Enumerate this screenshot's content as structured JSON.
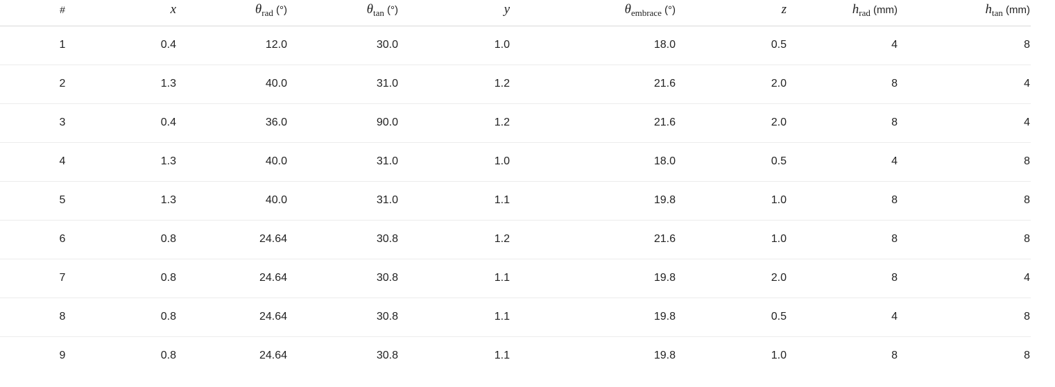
{
  "table": {
    "columns": [
      {
        "key": "index",
        "label": "#",
        "kind": "plain"
      },
      {
        "key": "x",
        "symbol": "x",
        "sub": "",
        "unit": "",
        "kind": "math"
      },
      {
        "key": "theta_rad",
        "symbol": "θ",
        "sub": "rad",
        "unit": " (°)",
        "kind": "math"
      },
      {
        "key": "theta_tan",
        "symbol": "θ",
        "sub": "tan",
        "unit": " (°)",
        "kind": "math"
      },
      {
        "key": "y",
        "symbol": "y",
        "sub": "",
        "unit": "",
        "kind": "math"
      },
      {
        "key": "theta_embrace",
        "symbol": "θ",
        "sub": "embrace",
        "unit": " (°)",
        "kind": "math"
      },
      {
        "key": "z",
        "symbol": "z",
        "sub": "",
        "unit": "",
        "kind": "math"
      },
      {
        "key": "h_rad",
        "symbol": "h",
        "sub": "rad",
        "unit": " (mm)",
        "kind": "math"
      },
      {
        "key": "h_tan",
        "symbol": "h",
        "sub": "tan",
        "unit": " (mm)",
        "kind": "math"
      }
    ],
    "rows": [
      [
        "1",
        "0.4",
        "12.0",
        "30.0",
        "1.0",
        "18.0",
        "0.5",
        "4",
        "8"
      ],
      [
        "2",
        "1.3",
        "40.0",
        "31.0",
        "1.2",
        "21.6",
        "2.0",
        "8",
        "4"
      ],
      [
        "3",
        "0.4",
        "36.0",
        "90.0",
        "1.2",
        "21.6",
        "2.0",
        "8",
        "4"
      ],
      [
        "4",
        "1.3",
        "40.0",
        "31.0",
        "1.0",
        "18.0",
        "0.5",
        "4",
        "8"
      ],
      [
        "5",
        "1.3",
        "40.0",
        "31.0",
        "1.1",
        "19.8",
        "1.0",
        "8",
        "8"
      ],
      [
        "6",
        "0.8",
        "24.64",
        "30.8",
        "1.2",
        "21.6",
        "1.0",
        "8",
        "8"
      ],
      [
        "7",
        "0.8",
        "24.64",
        "30.8",
        "1.1",
        "19.8",
        "2.0",
        "8",
        "4"
      ],
      [
        "8",
        "0.8",
        "24.64",
        "30.8",
        "1.1",
        "19.8",
        "0.5",
        "4",
        "8"
      ],
      [
        "9",
        "0.8",
        "24.64",
        "30.8",
        "1.1",
        "19.8",
        "1.0",
        "8",
        "8"
      ]
    ]
  }
}
